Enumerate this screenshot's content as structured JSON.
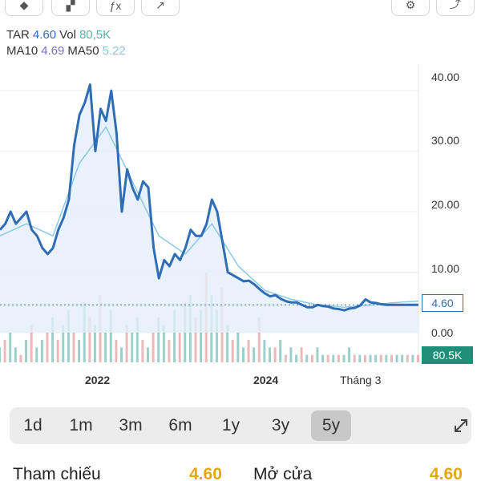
{
  "toolbar": {
    "buttons": [
      {
        "icon": "shape-icon",
        "glyph": "◆"
      },
      {
        "icon": "gradient-icon",
        "glyph": "▞"
      },
      {
        "icon": "function-icon",
        "glyph": "ƒx"
      },
      {
        "icon": "indicator-icon",
        "glyph": "↗"
      },
      {
        "icon": "settings-icon",
        "glyph": "⚙"
      },
      {
        "icon": "share-icon",
        "glyph": "⤴"
      }
    ]
  },
  "legend": {
    "symbol": "TAR",
    "price": "4.60",
    "vol_label": "Vol",
    "vol": "80,5K",
    "ma10_label": "MA10",
    "ma10": "4.69",
    "ma50_label": "MA50",
    "ma50": "5.22"
  },
  "colors": {
    "price_line": "#2f6db5",
    "ma50_line": "#8cc9e6",
    "area_fill": "#e3eef9",
    "vol_up": "#5ab0a6",
    "vol_down": "#e08a8a",
    "accent_yellow": "#e6a800"
  },
  "chart_data": {
    "type": "line",
    "symbol": "TAR",
    "y_ticks": [
      "40.00",
      "30.00",
      "20.00",
      "10.00",
      "0.00"
    ],
    "ylim": [
      0,
      42
    ],
    "x_labels": [
      "2022",
      "2024",
      "Tháng 3"
    ],
    "price_tag": "4.60",
    "volume_tag": "80.5K",
    "series": [
      {
        "name": "TAR",
        "x": [
          0,
          1,
          2,
          3,
          4,
          5,
          6,
          7,
          8,
          9,
          10,
          11,
          12,
          13,
          14,
          15,
          16,
          17,
          18,
          19,
          20,
          21,
          22,
          23,
          24,
          25,
          26,
          27,
          28,
          29,
          30,
          31,
          32,
          33,
          34,
          35,
          36,
          37,
          38,
          39,
          40,
          41,
          42,
          43,
          44,
          45,
          46,
          47,
          48,
          49,
          50,
          51,
          52,
          53,
          54,
          55,
          56,
          57,
          58,
          59,
          60,
          61,
          62,
          63,
          64,
          65,
          66,
          67,
          68,
          69,
          70,
          71,
          72,
          73,
          74,
          75,
          76,
          77,
          78,
          79
        ],
        "values": [
          17,
          18,
          20,
          18,
          19,
          20,
          17,
          16,
          14,
          13,
          14,
          17,
          19,
          22,
          31,
          36,
          38,
          41,
          30,
          37,
          35,
          40,
          33,
          20,
          27,
          24,
          22,
          25,
          24,
          14,
          9,
          12,
          11,
          13,
          12,
          14,
          17,
          16,
          16,
          18,
          22,
          20,
          15,
          10,
          9.5,
          9,
          8.5,
          8.6,
          8,
          7.2,
          6.5,
          6,
          6.2,
          5.6,
          5.2,
          5,
          5,
          4.6,
          4.2,
          4.2,
          4.6,
          4.4,
          4.3,
          4.0,
          3.9,
          3.7,
          4.0,
          4.1,
          4.5,
          5.5,
          5.0,
          4.9,
          4.7,
          4.6,
          4.6,
          4.6,
          4.6,
          4.6,
          4.6,
          4.6
        ]
      },
      {
        "name": "MA50",
        "x": [
          0,
          5,
          10,
          15,
          20,
          25,
          30,
          35,
          40,
          45,
          50,
          55,
          60,
          65,
          70,
          75,
          79
        ],
        "values": [
          16,
          18,
          16,
          28,
          34,
          25,
          16,
          13,
          18,
          11,
          7,
          5.5,
          4.6,
          4.2,
          4.6,
          5.0,
          5.22
        ]
      }
    ],
    "volume": [
      2,
      3,
      4,
      2,
      1,
      3,
      5,
      2,
      3,
      4,
      6,
      3,
      5,
      7,
      4,
      3,
      8,
      6,
      5,
      9,
      4,
      7,
      3,
      2,
      5,
      4,
      6,
      3,
      2,
      4,
      6,
      5,
      3,
      7,
      4,
      8,
      9,
      6,
      7,
      12,
      9,
      7,
      10,
      5,
      3,
      4,
      2,
      3,
      2,
      6,
      3,
      2,
      2,
      3,
      1,
      2,
      1,
      2,
      1,
      1,
      2,
      1,
      1,
      1,
      1,
      1,
      2,
      1,
      1,
      1,
      1,
      1,
      1,
      1,
      1,
      1,
      1,
      1,
      1,
      1
    ],
    "volume_up": [
      true,
      false,
      true,
      true,
      false,
      true,
      false,
      true,
      true,
      false,
      true,
      false,
      true,
      true,
      false,
      true,
      true,
      false,
      true,
      false,
      true,
      true,
      false,
      true,
      false,
      true,
      true,
      false,
      true,
      false,
      true,
      true,
      false,
      true,
      false,
      true,
      true,
      false,
      true,
      false,
      true,
      true,
      false,
      true,
      false,
      true,
      true,
      false,
      true,
      false,
      true,
      true,
      false,
      true,
      false,
      true,
      true,
      false,
      true,
      false,
      true,
      true,
      false,
      true,
      false,
      true,
      true,
      false,
      true,
      false,
      true,
      true,
      false,
      true,
      false,
      true,
      true,
      false,
      true,
      false
    ]
  },
  "ranges": {
    "items": [
      "1d",
      "1m",
      "3m",
      "6m",
      "1y",
      "3y",
      "5y"
    ],
    "active": "5y"
  },
  "stats": {
    "ref_label": "Tham chiếu",
    "ref_value": "4.60",
    "open_label": "Mở cửa",
    "open_value": "4.60"
  }
}
